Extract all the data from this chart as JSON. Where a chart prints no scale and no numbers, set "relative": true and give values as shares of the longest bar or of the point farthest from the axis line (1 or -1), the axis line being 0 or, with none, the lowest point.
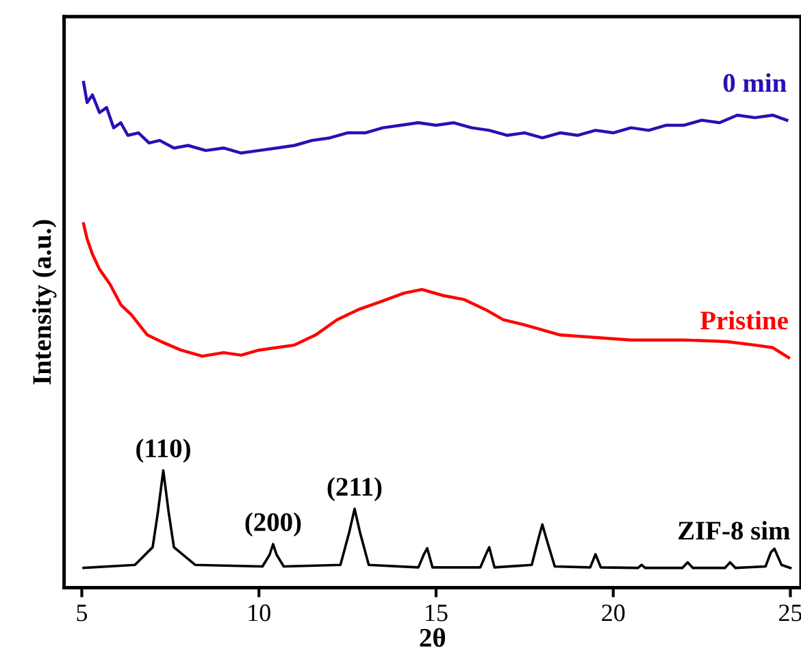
{
  "chart_data": {
    "type": "line",
    "relative": true,
    "xlabel": "2θ",
    "ylabel": "Intensity (a.u.)",
    "xlim": [
      4.5,
      25.3
    ],
    "xticks": [
      5,
      10,
      15,
      20,
      25
    ],
    "grid": false,
    "legend": false,
    "tick_labels": "x",
    "series": [
      {
        "name": "0 min",
        "color": "#2a0fb5",
        "x": [
          5.05,
          5.15,
          5.3,
          5.5,
          5.7,
          5.9,
          6.1,
          6.3,
          6.6,
          6.9,
          7.2,
          7.6,
          8.0,
          8.5,
          9.0,
          9.5,
          10.0,
          10.5,
          11.0,
          11.5,
          12.0,
          12.5,
          13.0,
          13.5,
          14.0,
          14.5,
          15.0,
          15.5,
          16.0,
          16.5,
          17.0,
          17.5,
          18.0,
          18.5,
          19.0,
          19.5,
          20.0,
          20.5,
          21.0,
          21.5,
          22.0,
          22.5,
          23.0,
          23.5,
          24.0,
          24.5,
          24.9
        ],
        "values": [
          1.0,
          0.96,
          0.975,
          0.94,
          0.95,
          0.91,
          0.92,
          0.895,
          0.9,
          0.88,
          0.885,
          0.87,
          0.875,
          0.865,
          0.87,
          0.86,
          0.865,
          0.87,
          0.875,
          0.885,
          0.89,
          0.9,
          0.9,
          0.91,
          0.915,
          0.92,
          0.915,
          0.92,
          0.91,
          0.905,
          0.895,
          0.9,
          0.89,
          0.9,
          0.895,
          0.905,
          0.9,
          0.91,
          0.905,
          0.915,
          0.915,
          0.925,
          0.92,
          0.935,
          0.93,
          0.935,
          0.925
        ]
      },
      {
        "name": "Pristine",
        "color": "#ff0000",
        "x": [
          5.05,
          5.15,
          5.3,
          5.5,
          5.8,
          6.1,
          6.4,
          6.85,
          7.3,
          7.8,
          8.4,
          9.0,
          9.5,
          10.0,
          10.5,
          11.0,
          11.6,
          12.2,
          12.8,
          13.4,
          14.1,
          14.6,
          15.2,
          15.8,
          16.4,
          16.9,
          17.5,
          18.5,
          19.5,
          20.5,
          21.2,
          22.0,
          23.2,
          24.0,
          24.5,
          24.95
        ],
        "values": [
          0.72,
          0.69,
          0.66,
          0.63,
          0.6,
          0.56,
          0.54,
          0.5,
          0.485,
          0.47,
          0.458,
          0.465,
          0.46,
          0.47,
          0.475,
          0.48,
          0.5,
          0.53,
          0.55,
          0.565,
          0.583,
          0.59,
          0.578,
          0.57,
          0.55,
          0.53,
          0.52,
          0.5,
          0.495,
          0.49,
          0.49,
          0.49,
          0.487,
          0.48,
          0.475,
          0.455
        ]
      },
      {
        "name": "ZIF-8 sim",
        "color": "#000000",
        "x": [
          5.05,
          6.5,
          7.0,
          7.15,
          7.3,
          7.45,
          7.6,
          8.2,
          10.1,
          10.3,
          10.4,
          10.5,
          10.7,
          12.3,
          12.55,
          12.7,
          12.85,
          13.1,
          14.5,
          14.65,
          14.75,
          14.9,
          16.25,
          16.4,
          16.5,
          16.65,
          17.7,
          17.9,
          18.0,
          18.1,
          18.35,
          19.35,
          19.5,
          19.65,
          20.7,
          20.8,
          20.9,
          21.95,
          22.1,
          22.25,
          23.15,
          23.3,
          23.45,
          24.3,
          24.45,
          24.55,
          24.75,
          25.0
        ],
        "values": [
          0.039,
          0.045,
          0.08,
          0.15,
          0.232,
          0.15,
          0.08,
          0.045,
          0.042,
          0.065,
          0.086,
          0.065,
          0.042,
          0.045,
          0.11,
          0.156,
          0.11,
          0.045,
          0.04,
          0.065,
          0.078,
          0.04,
          0.04,
          0.065,
          0.08,
          0.04,
          0.045,
          0.1,
          0.125,
          0.1,
          0.042,
          0.04,
          0.066,
          0.04,
          0.039,
          0.045,
          0.039,
          0.039,
          0.05,
          0.039,
          0.039,
          0.05,
          0.039,
          0.042,
          0.07,
          0.077,
          0.045,
          0.039
        ]
      }
    ],
    "annotations": [
      {
        "text": "(110)",
        "x": 7.3,
        "y": 0.232
      },
      {
        "text": "(200)",
        "x": 10.4,
        "y": 0.086
      },
      {
        "text": "(211)",
        "x": 12.7,
        "y": 0.156
      }
    ]
  }
}
